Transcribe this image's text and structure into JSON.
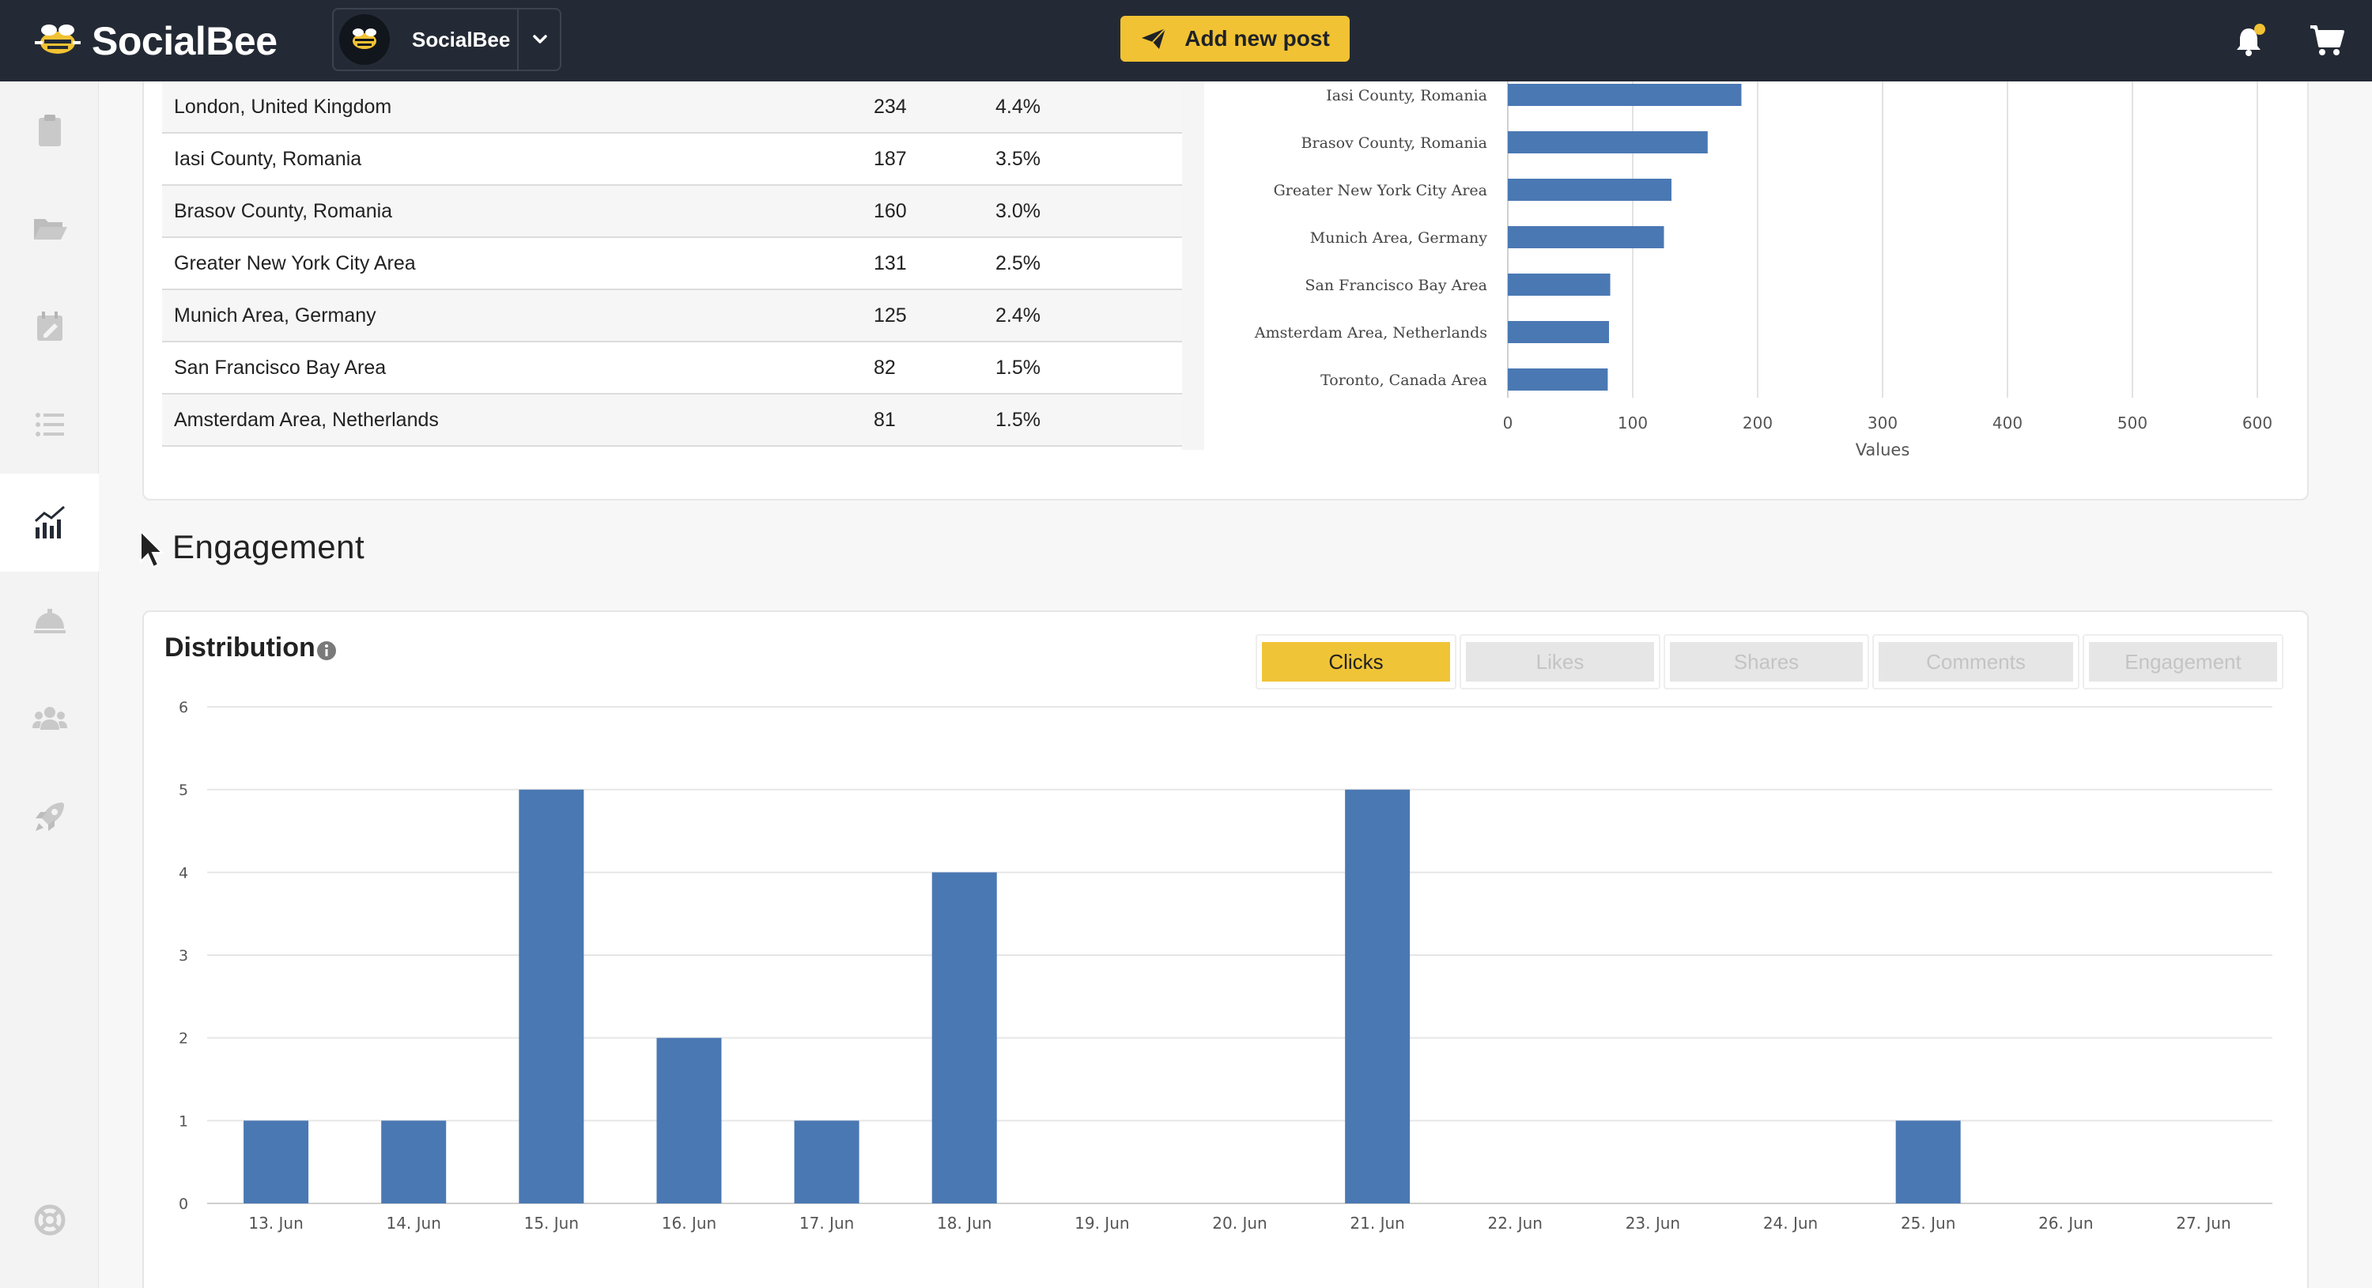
{
  "app": {
    "brand": "SocialBee",
    "workspace": "SocialBee",
    "add_post_label": "Add new post",
    "accent": "#f1c233",
    "topbar_color": "#242a35"
  },
  "icons": {
    "sidebar": [
      "clipboard-icon",
      "folder-icon",
      "calendar-edit-icon",
      "list-icon",
      "analytics-icon",
      "concierge-bell-icon",
      "users-icon",
      "rocket-icon",
      "help-lifebuoy-icon"
    ],
    "topbar": [
      "send-icon",
      "bell-icon",
      "cart-icon"
    ]
  },
  "locations_table": {
    "rows": [
      {
        "name": "London, United Kingdom",
        "count": "234",
        "pct": "4.4%"
      },
      {
        "name": "Iasi County, Romania",
        "count": "187",
        "pct": "3.5%"
      },
      {
        "name": "Brasov County, Romania",
        "count": "160",
        "pct": "3.0%"
      },
      {
        "name": "Greater New York City Area",
        "count": "131",
        "pct": "2.5%"
      },
      {
        "name": "Munich Area, Germany",
        "count": "125",
        "pct": "2.4%"
      },
      {
        "name": "San Francisco Bay Area",
        "count": "82",
        "pct": "1.5%"
      },
      {
        "name": "Amsterdam Area, Netherlands",
        "count": "81",
        "pct": "1.5%"
      }
    ]
  },
  "engagement": {
    "section_title": "Engagement",
    "distribution_title": "Distribution",
    "tabs": [
      {
        "label": "Clicks",
        "active": true
      },
      {
        "label": "Likes",
        "active": false
      },
      {
        "label": "Shares",
        "active": false
      },
      {
        "label": "Comments",
        "active": false
      },
      {
        "label": "Engagement",
        "active": false
      }
    ]
  },
  "chart_data": [
    {
      "type": "bar",
      "orientation": "horizontal",
      "categories": [
        "Iasi County, Romania",
        "Brasov County, Romania",
        "Greater New York City Area",
        "Munich Area, Germany",
        "San Francisco Bay Area",
        "Amsterdam Area, Netherlands",
        "Toronto, Canada Area"
      ],
      "values": [
        187,
        160,
        131,
        125,
        82,
        81,
        80
      ],
      "xlabel": "Values",
      "xlim": [
        0,
        600
      ],
      "ticks": [
        0,
        100,
        200,
        300,
        400,
        500,
        600
      ],
      "grid": true,
      "color": "#4a78b3"
    },
    {
      "type": "bar",
      "categories": [
        "13. Jun",
        "14. Jun",
        "15. Jun",
        "16. Jun",
        "17. Jun",
        "18. Jun",
        "19. Jun",
        "20. Jun",
        "21. Jun",
        "22. Jun",
        "23. Jun",
        "24. Jun",
        "25. Jun",
        "26. Jun",
        "27. Jun"
      ],
      "values": [
        1,
        1,
        5,
        2,
        1,
        4,
        0,
        0,
        5,
        0,
        0,
        0,
        1,
        0,
        0
      ],
      "ylim": [
        0,
        6
      ],
      "ticks": [
        0,
        1,
        2,
        3,
        4,
        5,
        6
      ],
      "grid": true,
      "color": "#4a78b3"
    }
  ]
}
